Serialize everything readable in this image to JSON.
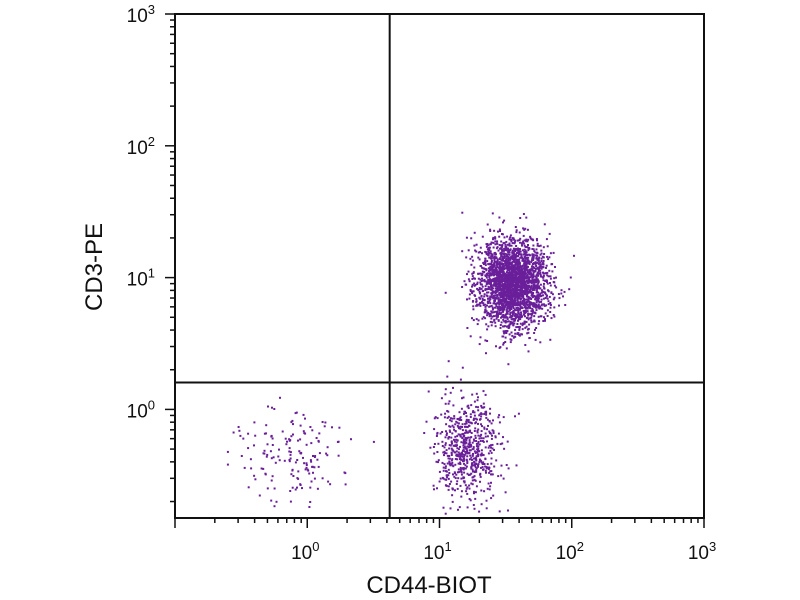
{
  "chart_data": {
    "type": "scatter",
    "xlabel": "CD44-BIOT",
    "ylabel": "CD3-PE",
    "x_scale": "log",
    "y_scale": "log",
    "xlim": [
      0.1,
      1000
    ],
    "ylim": [
      0.15,
      1000
    ],
    "x_ticks": [
      {
        "value": 1,
        "base": "10",
        "exp": "0"
      },
      {
        "value": 10,
        "base": "10",
        "exp": "1"
      },
      {
        "value": 100,
        "base": "10",
        "exp": "2"
      },
      {
        "value": 1000,
        "base": "10",
        "exp": "3"
      }
    ],
    "y_ticks": [
      {
        "value": 1,
        "base": "10",
        "exp": "0"
      },
      {
        "value": 10,
        "base": "10",
        "exp": "1"
      },
      {
        "value": 100,
        "base": "10",
        "exp": "2"
      },
      {
        "value": 1000,
        "base": "10",
        "exp": "3"
      }
    ],
    "gates": {
      "x": 4.2,
      "y": 1.6
    },
    "grid": false,
    "point_color": "#6a1f9a",
    "populations": [
      {
        "center_x": 36,
        "center_y": 9,
        "spread_x": 0.13,
        "spread_y": 0.17,
        "count": 2600
      },
      {
        "center_x": 16,
        "center_y": 0.5,
        "spread_x": 0.13,
        "spread_y": 0.2,
        "count": 650
      },
      {
        "center_x": 0.75,
        "center_y": 0.45,
        "spread_x": 0.22,
        "spread_y": 0.17,
        "count": 160
      }
    ]
  }
}
